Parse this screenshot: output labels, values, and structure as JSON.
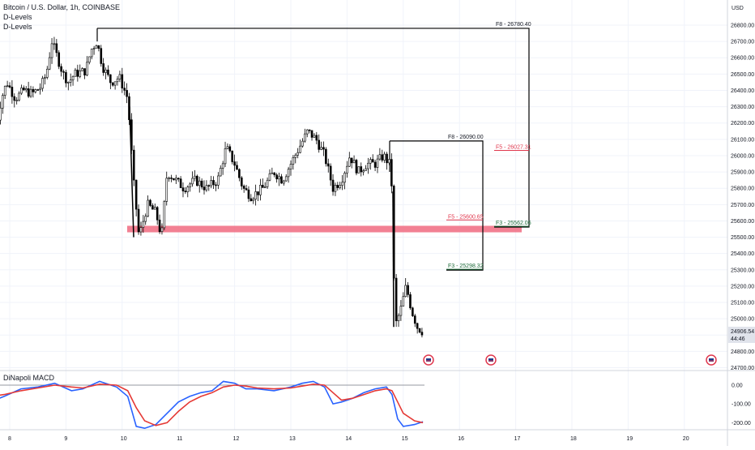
{
  "header": {
    "title": "Bitcoin / U.S. Dollar, 1h, COINBASE",
    "indicator_1": "D-Levels",
    "indicator_2": "D-Levels"
  },
  "price_axis": {
    "currency": "USD",
    "ticks": [
      "26800.00",
      "26700.00",
      "26600.00",
      "26500.00",
      "26400.00",
      "26300.00",
      "26200.00",
      "26100.00",
      "26000.00",
      "25900.00",
      "25800.00",
      "25700.00",
      "25600.00",
      "25500.00",
      "25400.00",
      "25300.00",
      "25200.00",
      "25100.00",
      "25000.00",
      "24900.00",
      "24800.00",
      "24700.00"
    ],
    "last_price": "24906.54",
    "countdown": "44:46"
  },
  "time_axis": {
    "ticks": [
      "8",
      "9",
      "10",
      "11",
      "12",
      "13",
      "14",
      "15",
      "16",
      "17",
      "18",
      "19",
      "20"
    ]
  },
  "macd": {
    "title": "DiNapoli MACD",
    "ticks": [
      "0.00",
      "-100.00",
      "-200.00"
    ]
  },
  "colors": {
    "up_down": "#000000",
    "support_zone": "#f06a80",
    "fib_red": "#e0384e",
    "fib_green": "#1e6b3a",
    "macd": "#2962ff",
    "signal": "#e53935"
  },
  "chart_data": {
    "type": "candlestick",
    "title": "Bitcoin / U.S. Dollar, 1h, COINBASE",
    "y_unit": "USD",
    "ylim": [
      24700,
      26850
    ],
    "x_ticks": [
      "8",
      "9",
      "10",
      "11",
      "12",
      "13",
      "14",
      "15",
      "16",
      "17",
      "18",
      "19",
      "20"
    ],
    "price_path": [
      [
        7.75,
        26150
      ],
      [
        7.85,
        26350
      ],
      [
        7.95,
        26450
      ],
      [
        8.1,
        26350
      ],
      [
        8.25,
        26400
      ],
      [
        8.4,
        26380
      ],
      [
        8.55,
        26420
      ],
      [
        8.65,
        26500
      ],
      [
        8.75,
        26700
      ],
      [
        8.85,
        26600
      ],
      [
        8.95,
        26500
      ],
      [
        9.05,
        26450
      ],
      [
        9.15,
        26500
      ],
      [
        9.35,
        26520
      ],
      [
        9.45,
        26650
      ],
      [
        9.55,
        26700
      ],
      [
        9.65,
        26550
      ],
      [
        9.8,
        26450
      ],
      [
        9.95,
        26480
      ],
      [
        10.1,
        26350
      ],
      [
        10.2,
        25850
      ],
      [
        10.3,
        25500
      ],
      [
        10.45,
        25700
      ],
      [
        10.6,
        25650
      ],
      [
        10.7,
        25500
      ],
      [
        10.8,
        25900
      ],
      [
        10.95,
        25850
      ],
      [
        11.1,
        25800
      ],
      [
        11.3,
        25850
      ],
      [
        11.5,
        25800
      ],
      [
        11.7,
        25850
      ],
      [
        11.85,
        26050
      ],
      [
        12.0,
        25950
      ],
      [
        12.15,
        25800
      ],
      [
        12.3,
        25750
      ],
      [
        12.5,
        25800
      ],
      [
        12.7,
        25900
      ],
      [
        12.85,
        25850
      ],
      [
        13.0,
        25950
      ],
      [
        13.15,
        26050
      ],
      [
        13.3,
        26150
      ],
      [
        13.45,
        26100
      ],
      [
        13.6,
        26000
      ],
      [
        13.75,
        25800
      ],
      [
        13.9,
        25850
      ],
      [
        14.05,
        26000
      ],
      [
        14.2,
        25900
      ],
      [
        14.35,
        25950
      ],
      [
        14.5,
        25950
      ],
      [
        14.65,
        26000
      ],
      [
        14.75,
        25950
      ],
      [
        14.8,
        25800
      ],
      [
        14.85,
        24950
      ],
      [
        14.95,
        25050
      ],
      [
        15.05,
        25200
      ],
      [
        15.15,
        25050
      ],
      [
        15.25,
        24950
      ],
      [
        15.35,
        24920
      ]
    ],
    "last_price": 24906.54,
    "fib_levels": [
      {
        "label": "F8 - 26780.40",
        "value": 26780.4,
        "color": "black"
      },
      {
        "label": "F5 - 26027.31",
        "value": 26027.31,
        "color": "red"
      },
      {
        "label": "F3 - 25562.06",
        "value": 25562.06,
        "color": "green"
      },
      {
        "label": "F8 - 26090.00",
        "value": 26090.0,
        "color": "black"
      },
      {
        "label": "F5 - 25600.65",
        "value": 25600.65,
        "color": "red"
      },
      {
        "label": "F3 - 25298.32",
        "value": 25298.32,
        "color": "green"
      }
    ],
    "support_zone": [
      25530,
      25570
    ],
    "macd": {
      "ylim": [
        -230,
        40
      ],
      "macd_path": [
        [
          7.65,
          -90
        ],
        [
          7.9,
          -60
        ],
        [
          8.2,
          -20
        ],
        [
          8.5,
          -10
        ],
        [
          8.8,
          10
        ],
        [
          9.1,
          -30
        ],
        [
          9.3,
          -20
        ],
        [
          9.6,
          20
        ],
        [
          9.9,
          -10
        ],
        [
          10.1,
          -60
        ],
        [
          10.25,
          -220
        ],
        [
          10.4,
          -230
        ],
        [
          10.6,
          -210
        ],
        [
          10.8,
          -150
        ],
        [
          11.0,
          -90
        ],
        [
          11.2,
          -60
        ],
        [
          11.4,
          -40
        ],
        [
          11.6,
          -30
        ],
        [
          11.8,
          20
        ],
        [
          12.0,
          10
        ],
        [
          12.2,
          -20
        ],
        [
          12.4,
          -20
        ],
        [
          12.7,
          -30
        ],
        [
          13.0,
          -10
        ],
        [
          13.2,
          10
        ],
        [
          13.4,
          20
        ],
        [
          13.6,
          -10
        ],
        [
          13.75,
          -100
        ],
        [
          13.9,
          -90
        ],
        [
          14.1,
          -70
        ],
        [
          14.3,
          -40
        ],
        [
          14.5,
          -20
        ],
        [
          14.7,
          -10
        ],
        [
          14.8,
          -50
        ],
        [
          14.9,
          -180
        ],
        [
          15.0,
          -220
        ],
        [
          15.2,
          -210
        ],
        [
          15.35,
          -195
        ]
      ],
      "signal_path": [
        [
          7.65,
          -60
        ],
        [
          7.9,
          -50
        ],
        [
          8.2,
          -30
        ],
        [
          8.5,
          -15
        ],
        [
          8.8,
          0
        ],
        [
          9.1,
          -10
        ],
        [
          9.3,
          -15
        ],
        [
          9.6,
          5
        ],
        [
          9.9,
          0
        ],
        [
          10.1,
          -30
        ],
        [
          10.25,
          -120
        ],
        [
          10.4,
          -190
        ],
        [
          10.6,
          -215
        ],
        [
          10.8,
          -200
        ],
        [
          11.0,
          -140
        ],
        [
          11.2,
          -90
        ],
        [
          11.4,
          -60
        ],
        [
          11.6,
          -40
        ],
        [
          11.8,
          -10
        ],
        [
          12.0,
          0
        ],
        [
          12.2,
          -5
        ],
        [
          12.4,
          -15
        ],
        [
          12.7,
          -20
        ],
        [
          13.0,
          -15
        ],
        [
          13.2,
          -5
        ],
        [
          13.4,
          5
        ],
        [
          13.6,
          0
        ],
        [
          13.75,
          -40
        ],
        [
          13.9,
          -80
        ],
        [
          14.1,
          -70
        ],
        [
          14.3,
          -50
        ],
        [
          14.5,
          -30
        ],
        [
          14.7,
          -20
        ],
        [
          14.8,
          -30
        ],
        [
          14.9,
          -90
        ],
        [
          15.0,
          -150
        ],
        [
          15.2,
          -190
        ],
        [
          15.35,
          -200
        ]
      ]
    }
  }
}
